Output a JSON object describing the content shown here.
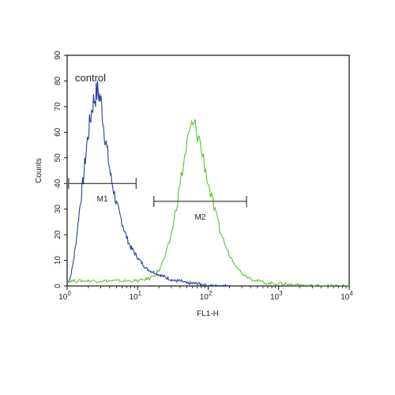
{
  "chart_data": {
    "type": "line",
    "title": "",
    "xlabel": "FL1-H",
    "ylabel": "Counts",
    "x_scale": "log",
    "xlim": [
      1,
      10000
    ],
    "ylim": [
      0,
      90
    ],
    "x_ticks": [
      {
        "value": 1,
        "base": "10",
        "exp": "0"
      },
      {
        "value": 10,
        "base": "10",
        "exp": "1"
      },
      {
        "value": 100,
        "base": "10",
        "exp": "2"
      },
      {
        "value": 1000,
        "base": "10",
        "exp": "3"
      },
      {
        "value": 10000,
        "base": "10",
        "exp": "4"
      }
    ],
    "y_ticks": [
      "0",
      "10",
      "20",
      "30",
      "40",
      "50",
      "60",
      "70",
      "80",
      "90"
    ],
    "annotation": "control",
    "series": [
      {
        "name": "",
        "color": "#2a3fa0",
        "x": [
          1.0,
          1.1,
          1.2,
          1.35,
          1.5,
          1.7,
          1.9,
          2.1,
          2.3,
          2.5,
          2.7,
          2.9,
          3.1,
          3.3,
          3.6,
          3.9,
          4.2,
          4.6,
          5.0,
          5.5,
          6.0,
          6.6,
          7.2,
          8.0,
          9.0,
          10.0,
          11.5,
          13.0,
          15.0,
          18.0,
          22.0,
          27.0,
          33.0,
          40.0,
          50.0,
          70.0,
          100.0,
          200.0
        ],
        "y": [
          1,
          3,
          8,
          18,
          30,
          42,
          55,
          64,
          71,
          74,
          76,
          74,
          70,
          62,
          55,
          48,
          42,
          37,
          32,
          28,
          25,
          21,
          18,
          15,
          13,
          11,
          9,
          7,
          6,
          5,
          4,
          3,
          2,
          2,
          1,
          1,
          0,
          0
        ]
      },
      {
        "name": "",
        "color": "#5cbf3a",
        "x": [
          1.0,
          2.0,
          5.0,
          10.0,
          15.0,
          20.0,
          25.0,
          30.0,
          35.0,
          40.0,
          45.0,
          50.0,
          55.0,
          60.0,
          65.0,
          70.0,
          75.0,
          80.0,
          90.0,
          100.0,
          115.0,
          130.0,
          150.0,
          175.0,
          200.0,
          250.0,
          300.0,
          400.0,
          500.0,
          700.0,
          1000.0,
          3000.0,
          10000.0
        ],
        "y": [
          2,
          2,
          2,
          2,
          3,
          6,
          12,
          20,
          30,
          40,
          48,
          55,
          60,
          63,
          62,
          60,
          57,
          53,
          47,
          40,
          33,
          27,
          21,
          16,
          12,
          8,
          5,
          3,
          2,
          1,
          1,
          0,
          0
        ]
      }
    ],
    "gates": [
      {
        "label": "M1",
        "x_start": 1.05,
        "x_end": 9.5,
        "y": 40
      },
      {
        "label": "M2",
        "x_start": 17.0,
        "x_end": 350.0,
        "y": 33
      }
    ],
    "grid": false
  }
}
